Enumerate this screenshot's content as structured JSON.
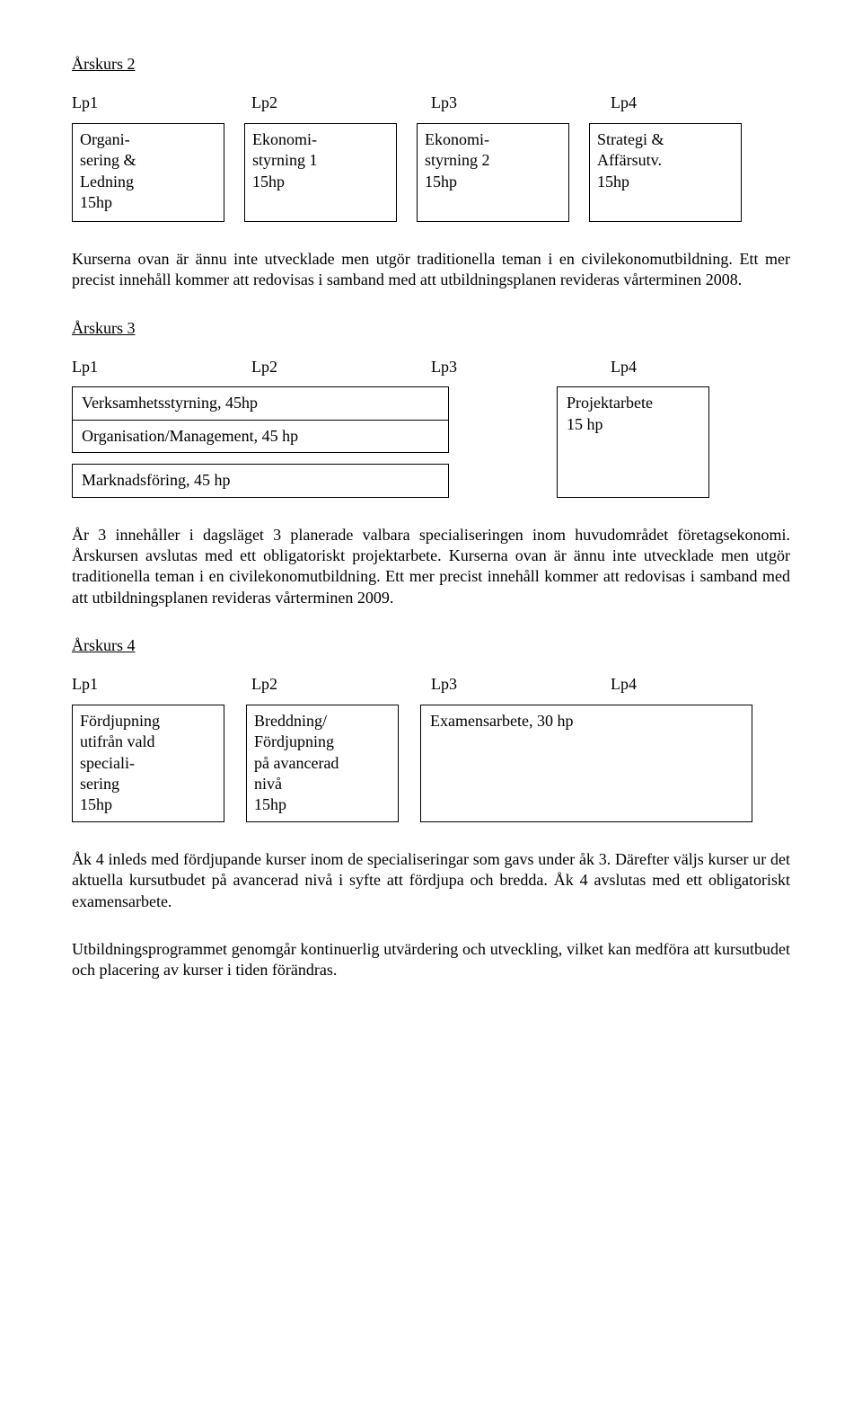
{
  "year2": {
    "heading": "Årskurs 2",
    "lp_labels": [
      "Lp1",
      "Lp2",
      "Lp3",
      "Lp4"
    ],
    "courses": [
      {
        "line1": "Organi-",
        "line2": "sering &",
        "line3": "Ledning",
        "line4": "15hp"
      },
      {
        "line1": "Ekonomi-",
        "line2": "styrning 1",
        "line3": "15hp",
        "line4": ""
      },
      {
        "line1": "Ekonomi-",
        "line2": "styrning 2",
        "line3": "15hp",
        "line4": ""
      },
      {
        "line1": "Strategi &",
        "line2": "Affärsutv.",
        "line3": "15hp",
        "line4": ""
      }
    ],
    "para": "Kurserna ovan är ännu inte utvecklade men utgör traditionella teman i en civilekonomutbildning. Ett mer precist innehåll kommer att redovisas i samband med att utbildningsplanen revideras vårterminen 2008."
  },
  "year3": {
    "heading": "Årskurs 3",
    "lp_labels": [
      "Lp1",
      "Lp2",
      "Lp3",
      "Lp4"
    ],
    "left_double_top": "Verksamhetsstyrning, 45hp",
    "left_double_bottom": "Organisation/Management, 45 hp",
    "left_single": "Marknadsföring, 45 hp",
    "right_box_line1": "Projektarbete",
    "right_box_line2": "15 hp",
    "para": "År 3 innehåller i dagsläget 3 planerade valbara specialiseringen inom huvudområdet företagsekonomi. Årskursen avslutas med ett obligatoriskt projektarbete. Kurserna ovan är ännu inte utvecklade men utgör traditionella teman i en civilekonomutbildning. Ett mer precist innehåll kommer att redovisas i samband med att utbildningsplanen revideras vårterminen 2009."
  },
  "year4": {
    "heading": "Årskurs 4",
    "lp_labels": [
      "Lp1",
      "Lp2",
      "Lp3",
      "Lp4"
    ],
    "box1_l1": "Fördjupning",
    "box1_l2": "utifrån vald",
    "box1_l3": "speciali-",
    "box1_l4": "sering",
    "box1_l5": "15hp",
    "box2_l1": "Breddning/",
    "box2_l2": "Fördjupning",
    "box2_l3": "på avancerad",
    "box2_l4": "nivå",
    "box2_l5": "15hp",
    "exam_box": "Examensarbete, 30 hp",
    "para1": "Åk 4 inleds med fördjupande kurser inom de specialiseringar som gavs under åk 3. Därefter väljs kurser ur det aktuella kursutbudet på avancerad nivå i syfte att fördjupa och bredda. Åk 4 avslutas med ett obligatoriskt examensarbete.",
    "para2": "Utbildningsprogrammet genomgår kontinuerlig utvärdering och utveckling, vilket kan medföra att kursutbudet och placering av kurser i tiden förändras."
  }
}
